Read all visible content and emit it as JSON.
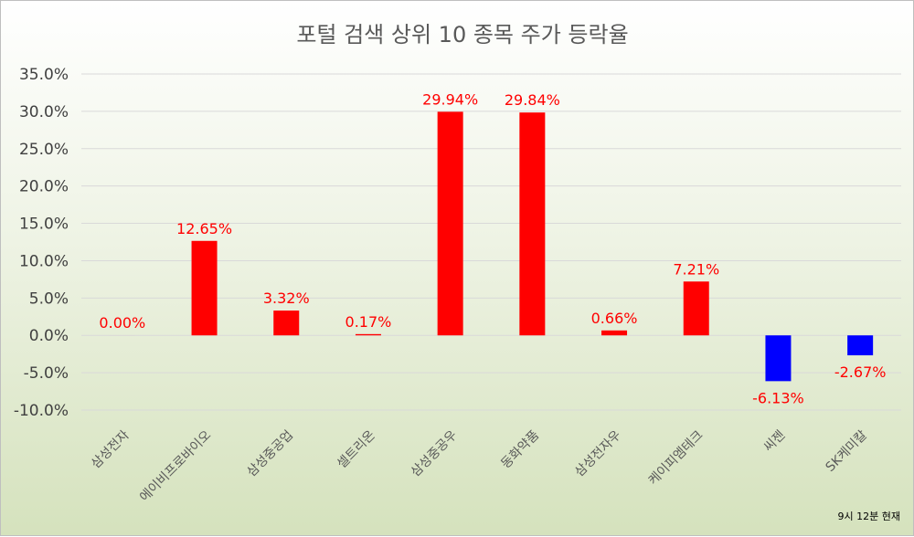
{
  "chart_data": {
    "type": "bar",
    "title": "포털 검색 상위 10 종목 주가 등락율",
    "categories": [
      "삼성전자",
      "에이비프로바이오",
      "삼성중공업",
      "셀트리온",
      "삼성중공우",
      "동화약품",
      "삼성전자우",
      "케이피엠테크",
      "씨젠",
      "SK케미칼"
    ],
    "values": [
      0.0,
      12.65,
      3.32,
      0.17,
      29.94,
      29.84,
      0.66,
      7.21,
      -6.13,
      -2.67
    ],
    "data_labels": [
      "0.00%",
      "12.65%",
      "3.32%",
      "0.17%",
      "29.94%",
      "29.84%",
      "0.66%",
      "7.21%",
      "-6.13%",
      "-2.67%"
    ],
    "y_ticks": [
      "35.0%",
      "30.0%",
      "25.0%",
      "20.0%",
      "15.0%",
      "10.0%",
      "5.0%",
      "0.0%",
      "-5.0%",
      "-10.0%"
    ],
    "ylim": [
      -10,
      35
    ],
    "grid": true,
    "legend": "none",
    "colors": {
      "positive": "#ff0000",
      "negative": "#0000ff",
      "label": "#ff0000"
    },
    "annotation": "9시 12분 현재"
  }
}
